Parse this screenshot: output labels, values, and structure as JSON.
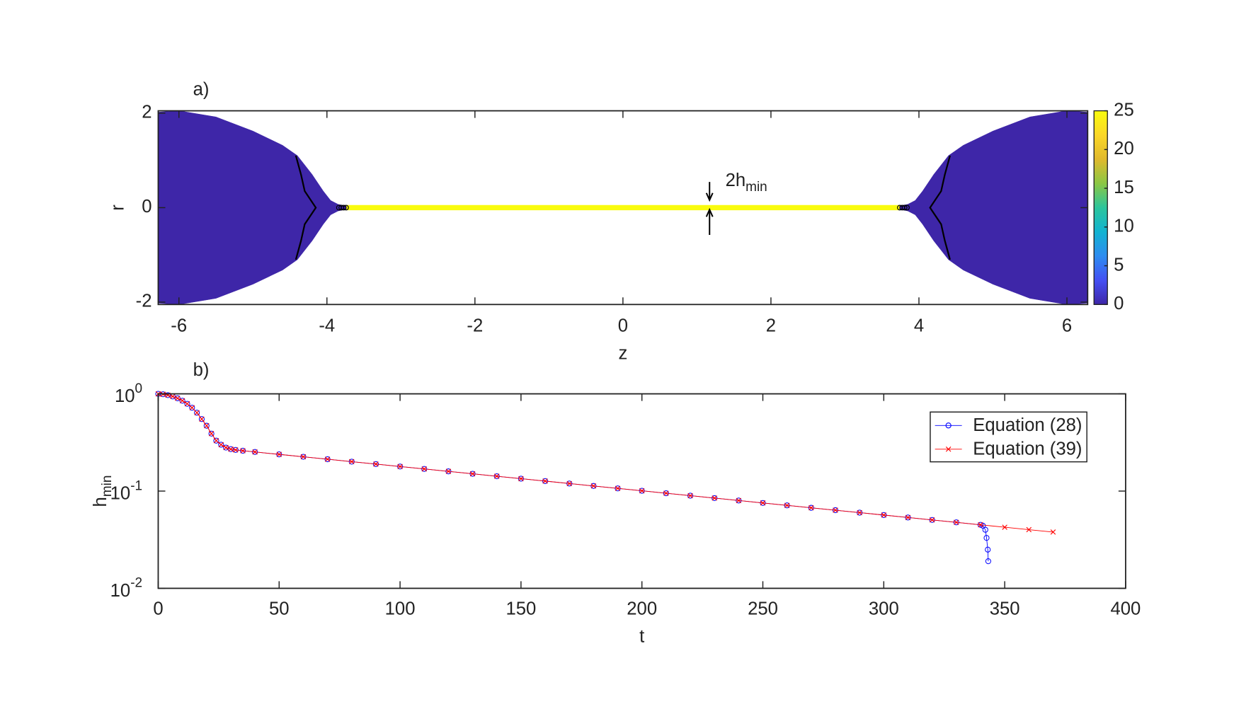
{
  "chart_data": [
    {
      "type": "field",
      "panel_label": "a)",
      "xlabel": "z",
      "ylabel": "r",
      "xlim": [
        -6.28,
        6.28
      ],
      "ylim": [
        -2.05,
        2.05
      ],
      "xticks": [
        -6,
        -4,
        -2,
        0,
        2,
        4,
        6
      ],
      "yticks": [
        -2,
        0,
        2
      ],
      "clim": [
        0,
        25
      ],
      "cticks": [
        0,
        5,
        10,
        15,
        20,
        25
      ],
      "colormap": [
        "#3e26a8",
        "#4450f3",
        "#2d8cf0",
        "#13b3d1",
        "#2cc59c",
        "#8bc744",
        "#e0b92d",
        "#fbd727",
        "#f9fb0e"
      ],
      "regions": [
        {
          "z": [
            -6.28,
            -6,
            -5.5,
            -5,
            -4.6,
            -4.4,
            -4.2,
            -4.05,
            -3.95,
            -3.85,
            -3.72
          ],
          "h": [
            2.02,
            2.05,
            1.92,
            1.62,
            1.32,
            1.1,
            0.7,
            0.35,
            0.15,
            0.07,
            0.03
          ],
          "value": 0
        },
        {
          "z": [
            3.72,
            3.85,
            3.95,
            4.05,
            4.2,
            4.4,
            4.6,
            5,
            5.5,
            6,
            6.28
          ],
          "h": [
            0.03,
            0.07,
            0.15,
            0.35,
            0.7,
            1.1,
            1.32,
            1.62,
            1.92,
            2.05,
            2.02
          ],
          "value": 0
        },
        {
          "z": [
            -3.72,
            3.72
          ],
          "h": [
            0.03,
            0.03
          ],
          "value": 25
        }
      ],
      "contours": [
        {
          "z": [
            -4.42,
            -4.35,
            -4.3,
            -4.15,
            -4.3,
            -4.35,
            -4.42
          ],
          "r": [
            1.1,
            0.7,
            0.35,
            0,
            -0.35,
            -0.7,
            -1.1
          ]
        },
        {
          "z": [
            4.42,
            4.35,
            4.3,
            4.15,
            4.3,
            4.35,
            4.42
          ],
          "r": [
            1.1,
            0.7,
            0.35,
            0,
            -0.35,
            -0.7,
            -1.1
          ]
        }
      ],
      "annotation": {
        "text": "2h",
        "sub": "min"
      }
    },
    {
      "type": "line",
      "panel_label": "b)",
      "xlabel": "t",
      "ylabel": {
        "text": "h",
        "sub": "min"
      },
      "xlim": [
        0,
        400
      ],
      "ylim": [
        0.01,
        1
      ],
      "log_y": true,
      "legend": "upper-right",
      "xticks": [
        0,
        50,
        100,
        150,
        200,
        250,
        300,
        350,
        400
      ],
      "yticks": [
        {
          "value": 0.01,
          "label": "10",
          "exp": "-2"
        },
        {
          "value": 0.1,
          "label": "10",
          "exp": "-1"
        },
        {
          "value": 1,
          "label": "10",
          "exp": "0"
        }
      ],
      "series": [
        {
          "name": "Equation (28)",
          "color": "#0000ff",
          "marker": "circle",
          "x": [
            0,
            2,
            4,
            6,
            8,
            10,
            12,
            14,
            16,
            18,
            20,
            22,
            24,
            26,
            28,
            30,
            32,
            35,
            40,
            50,
            60,
            70,
            80,
            90,
            100,
            110,
            120,
            130,
            140,
            150,
            160,
            170,
            180,
            190,
            200,
            210,
            220,
            230,
            240,
            250,
            260,
            270,
            280,
            290,
            300,
            310,
            320,
            330,
            340,
            341,
            342,
            342.5,
            343,
            343.2
          ],
          "values": [
            1,
            0.99,
            0.97,
            0.94,
            0.9,
            0.85,
            0.79,
            0.72,
            0.64,
            0.55,
            0.47,
            0.39,
            0.33,
            0.3,
            0.28,
            0.27,
            0.265,
            0.26,
            0.2526,
            0.2385,
            0.2252,
            0.2126,
            0.2007,
            0.1895,
            0.1789,
            0.1689,
            0.1595,
            0.1506,
            0.1421,
            0.1342,
            0.1267,
            0.1196,
            0.1129,
            0.1066,
            0.1007,
            0.095,
            0.0897,
            0.0847,
            0.08,
            0.0755,
            0.0713,
            0.0673,
            0.0636,
            0.06,
            0.0567,
            0.0535,
            0.0505,
            0.0477,
            0.045,
            0.044,
            0.04,
            0.033,
            0.025,
            0.019
          ]
        },
        {
          "name": "Equation (39)",
          "color": "#ff0000",
          "marker": "x",
          "x": [
            0,
            2,
            4,
            6,
            8,
            10,
            12,
            14,
            16,
            18,
            20,
            22,
            24,
            26,
            28,
            30,
            32,
            35,
            40,
            50,
            60,
            70,
            80,
            90,
            100,
            110,
            120,
            130,
            140,
            150,
            160,
            170,
            180,
            190,
            200,
            210,
            220,
            230,
            240,
            250,
            260,
            270,
            280,
            290,
            300,
            310,
            320,
            330,
            340,
            350,
            360,
            370
          ],
          "values": [
            1,
            0.99,
            0.97,
            0.94,
            0.9,
            0.85,
            0.79,
            0.72,
            0.64,
            0.55,
            0.47,
            0.39,
            0.33,
            0.3,
            0.28,
            0.27,
            0.265,
            0.26,
            0.2526,
            0.2385,
            0.2252,
            0.2126,
            0.2007,
            0.1895,
            0.1789,
            0.1689,
            0.1595,
            0.1506,
            0.1421,
            0.1342,
            0.1267,
            0.1196,
            0.1129,
            0.1066,
            0.1007,
            0.095,
            0.0897,
            0.0847,
            0.08,
            0.0755,
            0.0713,
            0.0673,
            0.0636,
            0.06,
            0.0567,
            0.0535,
            0.0505,
            0.0477,
            0.045,
            0.0425,
            0.0401,
            0.0379
          ]
        }
      ]
    }
  ]
}
